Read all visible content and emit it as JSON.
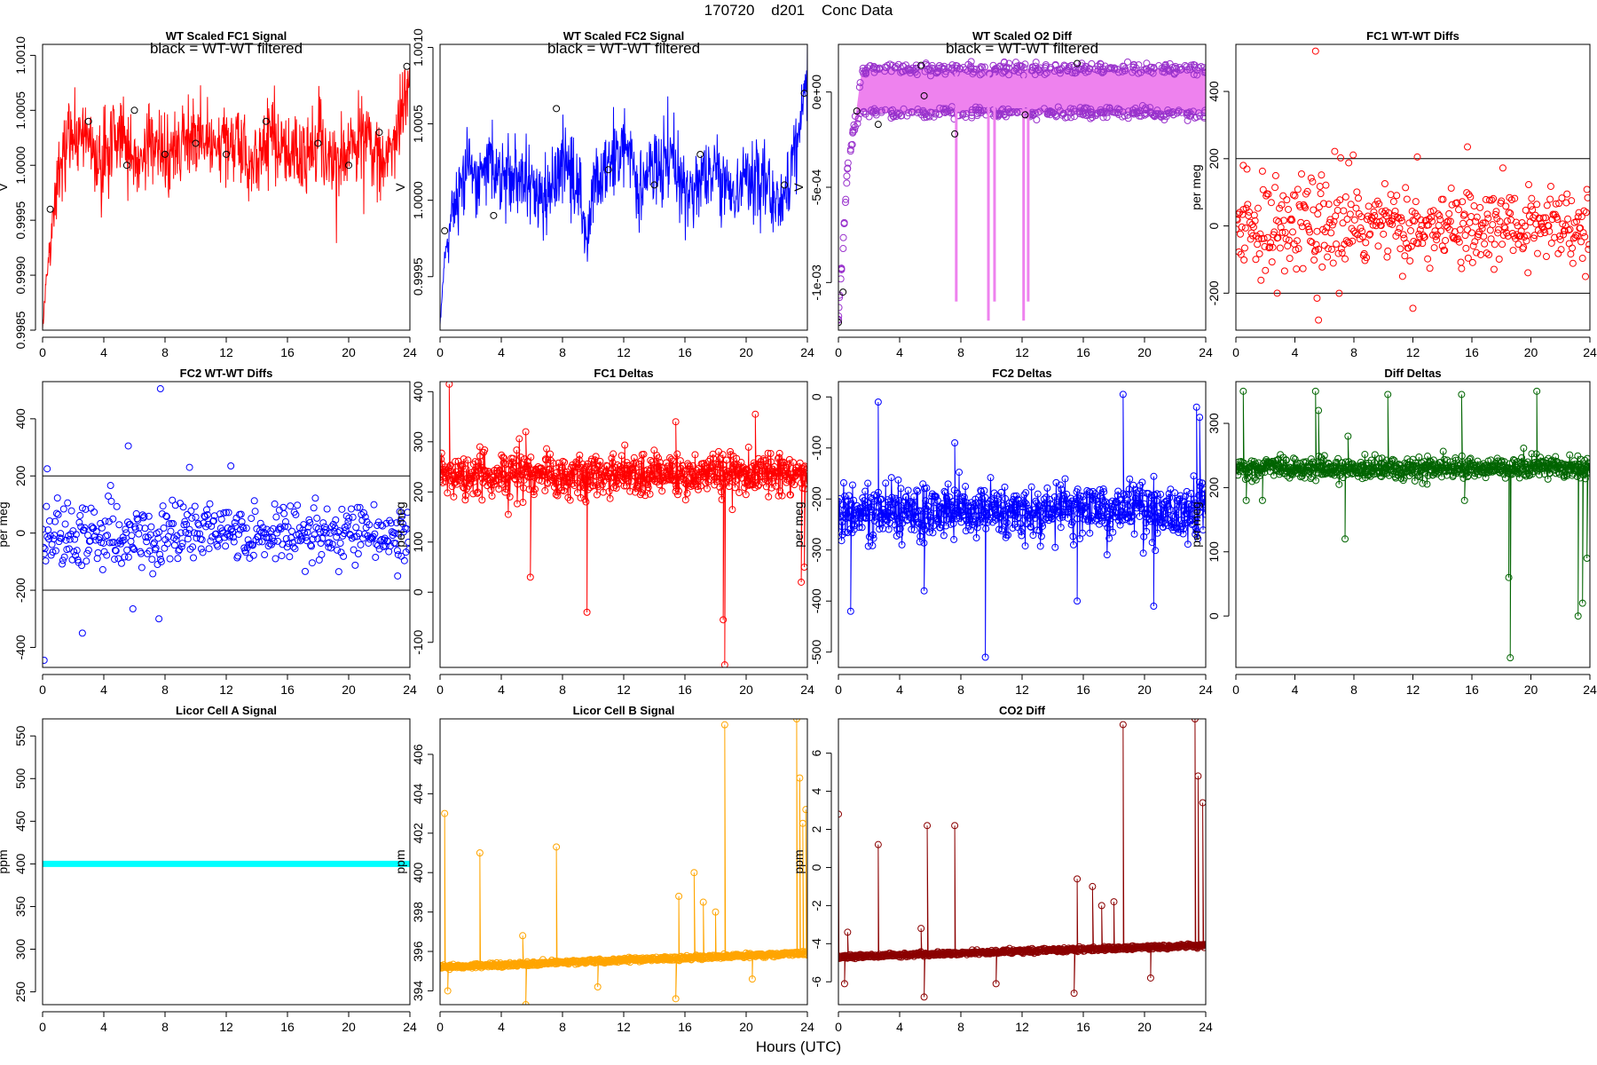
{
  "figure": {
    "title": "170720    d201    Conc Data",
    "xlabel": "Hours (UTC)"
  },
  "chart_data": [
    {
      "id": "p1",
      "type": "line",
      "title": "WT Scaled FC1 Signal",
      "note": "black = WT-WT filtered",
      "ylabel": "V",
      "xlim": [
        0,
        24
      ],
      "xticks": [
        0,
        4,
        8,
        12,
        16,
        20,
        24
      ],
      "ylim": [
        0.9985,
        1.0011
      ],
      "yticks": [
        0.9985,
        0.999,
        0.9995,
        1.0,
        1.0005,
        1.001
      ],
      "ytick_labels": [
        "0.9985",
        "0.9990",
        "0.9995",
        "1.0000",
        "1.0005",
        "1.0010"
      ],
      "series": [
        {
          "color": "#ff0000",
          "x": [
            0,
            0.2,
            0.5,
            0.8,
            1.2,
            1.6,
            2.0,
            2.4,
            2.8,
            3.2,
            3.6,
            4,
            5,
            6,
            7,
            8,
            9,
            10,
            11,
            12,
            13,
            14,
            15,
            16,
            17,
            18,
            19,
            20,
            21,
            22,
            22.8,
            23.3,
            23.7,
            24
          ],
          "y": [
            0.9985,
            0.9989,
            0.9993,
            0.9997,
            1.0,
            1.0002,
            1.0003,
            1.0002,
            1.0004,
            1.0001,
            1.0,
            1.0001,
            1.0003,
            1.0,
            1.0002,
            1.0001,
            1.0002,
            1.0003,
            1.0001,
            1.0002,
            1.0001,
            1.0,
            1.0002,
            1.0001,
            1.0001,
            1.0002,
            1.0,
            1.0001,
            1.0003,
            1.0001,
            1.0,
            1.0003,
            1.0006,
            1.001
          ]
        },
        {
          "color": "#000000",
          "x": [
            0.5,
            3,
            5.5,
            6,
            8,
            10,
            12,
            14.6,
            18,
            20,
            22,
            23.8
          ],
          "y": [
            0.9996,
            1.0004,
            1.0,
            1.0005,
            1.0001,
            1.0002,
            1.0001,
            1.0004,
            1.0002,
            1.0,
            1.0003,
            1.0009
          ]
        }
      ]
    },
    {
      "id": "p2",
      "type": "line",
      "title": "WT Scaled FC2 Signal",
      "note": "black = WT-WT filtered",
      "ylabel": "V",
      "xlim": [
        0,
        24
      ],
      "xticks": [
        0,
        4,
        8,
        12,
        16,
        20,
        24
      ],
      "ylim": [
        0.99915,
        1.00102
      ],
      "yticks": [
        0.9995,
        1.0,
        1.0005,
        1.001
      ],
      "ytick_labels": [
        "0.9995",
        "1.0000",
        "1.0005",
        "1.0010"
      ],
      "series": [
        {
          "color": "#0000ff",
          "x": [
            0,
            0.3,
            0.6,
            1,
            1.5,
            2,
            2.5,
            3,
            4,
            5,
            6,
            7,
            8,
            9,
            9.6,
            10,
            11,
            12,
            13,
            14,
            15,
            16,
            17,
            18,
            19,
            20,
            21,
            22,
            22.8,
            23.4,
            24
          ],
          "y": [
            0.9992,
            0.9996,
            0.99985,
            1.0,
            1.0001,
            1.0002,
            1.0001,
            1.0003,
            1.0001,
            1.0002,
            1.0001,
            1.0,
            1.0003,
            1.0001,
            0.9997,
            1.0001,
            1.0002,
            1.0004,
            1.0001,
            1.0002,
            1.0003,
            1.0,
            1.0001,
            1.0002,
            1.0,
            1.0001,
            1.0002,
            1.0,
            1.0001,
            1.0004,
            1.0008
          ]
        },
        {
          "color": "#000000",
          "x": [
            0.3,
            3.5,
            7.6,
            11,
            14,
            17,
            22.5,
            23.8
          ],
          "y": [
            0.9998,
            0.9999,
            1.0006,
            1.0002,
            1.0001,
            1.0003,
            1.0001,
            1.0007
          ]
        }
      ]
    },
    {
      "id": "p3",
      "type": "scatter",
      "title": "WT Scaled O2 Diff",
      "note": "black = WT-WT filtered",
      "ylabel": "V",
      "xlim": [
        0,
        24
      ],
      "xticks": [
        0,
        4,
        8,
        12,
        16,
        20,
        24
      ],
      "ylim": [
        -0.00125,
        0.00025
      ],
      "yticks": [
        -0.001,
        -0.0005,
        0
      ],
      "ytick_labels": [
        "-1e-03",
        "-5e-04",
        "0e+00"
      ],
      "series": [
        {
          "color": "#9932cc",
          "x": [
            0,
            0.3,
            0.6,
            1,
            1.5,
            2,
            3,
            4,
            5,
            6,
            7,
            8,
            9,
            10,
            11,
            12,
            13,
            14,
            15,
            16,
            17,
            18,
            19,
            20,
            21,
            22,
            23,
            24
          ],
          "y_upper": [
            -0.0012,
            -0.0008,
            -0.0004,
            -0.0002,
            0.0001,
            0.00012,
            0.00012,
            0.00012,
            0.00012,
            0.00012,
            0.00012,
            0.00012,
            0.00012,
            0.00012,
            0.00012,
            0.00012,
            0.00012,
            0.00012,
            0.00012,
            0.00012,
            0.00012,
            0.00012,
            0.00012,
            0.00012,
            0.00012,
            0.00012,
            0.00012,
            0.00012
          ],
          "y_lower": [
            -0.0012,
            -0.0008,
            -0.0004,
            -0.0002,
            -0.0001,
            -0.00011,
            -0.00011,
            -0.00011,
            -0.00011,
            -0.00011,
            -0.00011,
            -0.00011,
            -0.00011,
            -0.00011,
            -0.00011,
            -0.00011,
            -0.00011,
            -0.00011,
            -0.00011,
            -0.00011,
            -0.00011,
            -0.00011,
            -0.00011,
            -0.00011,
            -0.00011,
            -0.00011,
            -0.00011,
            -0.00011
          ]
        },
        {
          "color": "#000000",
          "x": [
            0,
            0.3,
            1.2,
            2.6,
            5.4,
            5.6,
            7.6,
            12.2,
            15.6
          ],
          "y": [
            -0.00121,
            -0.00105,
            -0.0001,
            -0.00017,
            0.00014,
            -2e-05,
            -0.00022,
            -0.00012,
            0.00015
          ]
        }
      ]
    },
    {
      "id": "p4",
      "type": "scatter",
      "title": "FC1 WT-WT Diffs",
      "ylabel": "per meg",
      "xlim": [
        0,
        24
      ],
      "xticks": [
        0,
        4,
        8,
        12,
        16,
        20,
        24
      ],
      "ylim": [
        -310,
        540
      ],
      "yticks": [
        -200,
        0,
        200,
        400
      ],
      "ytick_labels": [
        "-200",
        "0",
        "200",
        "400"
      ],
      "hlines": [
        200,
        -200
      ],
      "series": [
        {
          "color": "#ff0000",
          "sigma": 65,
          "n": 480,
          "seed": 11,
          "outliers": [
            [
              5.4,
              520
            ],
            [
              5.5,
              -215
            ],
            [
              5.6,
              -280
            ],
            [
              12.3,
              205
            ],
            [
              15.7,
              235
            ],
            [
              12.0,
              -245
            ],
            [
              0.5,
              180
            ],
            [
              2.8,
              -200
            ]
          ]
        }
      ]
    },
    {
      "id": "p5",
      "type": "scatter",
      "title": "FC2 WT-WT Diffs",
      "ylabel": "per meg",
      "xlim": [
        0,
        24
      ],
      "xticks": [
        0,
        4,
        8,
        12,
        16,
        20,
        24
      ],
      "ylim": [
        -470,
        530
      ],
      "yticks": [
        -400,
        -200,
        0,
        200,
        400
      ],
      "ytick_labels": [
        "-400",
        "-200",
        "0",
        "200",
        "400"
      ],
      "hlines": [
        200,
        -200
      ],
      "series": [
        {
          "color": "#0000ff",
          "sigma": 60,
          "n": 470,
          "seed": 23,
          "outliers": [
            [
              7.7,
              505
            ],
            [
              5.6,
              305
            ],
            [
              0.1,
              -445
            ],
            [
              2.6,
              -350
            ],
            [
              7.6,
              -300
            ],
            [
              5.9,
              -265
            ],
            [
              0.3,
              225
            ],
            [
              9.6,
              230
            ],
            [
              12.3,
              235
            ],
            [
              23.2,
              -150
            ]
          ]
        }
      ]
    },
    {
      "id": "p6",
      "type": "line",
      "title": "FC1 Deltas",
      "ylabel": "per meg",
      "xlim": [
        0,
        24
      ],
      "xticks": [
        0,
        4,
        8,
        12,
        16,
        20,
        24
      ],
      "ylim": [
        -150,
        420
      ],
      "yticks": [
        -100,
        0,
        100,
        200,
        300,
        400
      ],
      "ytick_labels": [
        "-100",
        "0",
        "100",
        "200",
        "300",
        "400"
      ],
      "series": [
        {
          "color": "#ff0000",
          "base": 235,
          "sigma": 22,
          "n": 700,
          "seed": 5,
          "spikes": [
            [
              0.6,
              415
            ],
            [
              5.9,
              30
            ],
            [
              9.6,
              -40
            ],
            [
              18.6,
              -145
            ],
            [
              18.5,
              -55
            ],
            [
              15.4,
              340
            ],
            [
              20.6,
              355
            ],
            [
              5.6,
              320
            ],
            [
              2.6,
              290
            ],
            [
              23.6,
              20
            ],
            [
              23.8,
              50
            ]
          ]
        }
      ]
    },
    {
      "id": "p7",
      "type": "line",
      "title": "FC2 Deltas",
      "ylabel": "per meg",
      "xlim": [
        0,
        24
      ],
      "xticks": [
        0,
        4,
        8,
        12,
        16,
        20,
        24
      ],
      "ylim": [
        -530,
        30
      ],
      "yticks": [
        -500,
        -400,
        -300,
        -200,
        -100,
        0
      ],
      "ytick_labels": [
        "-500",
        "-400",
        "-300",
        "-200",
        "-100",
        "0"
      ],
      "series": [
        {
          "color": "#0000ff",
          "base": -225,
          "sigma": 25,
          "n": 700,
          "seed": 7,
          "spikes": [
            [
              9.6,
              -510
            ],
            [
              18.6,
              5
            ],
            [
              0.8,
              -420
            ],
            [
              20.6,
              -410
            ],
            [
              15.6,
              -400
            ],
            [
              5.6,
              -380
            ],
            [
              23.4,
              -20
            ],
            [
              23.6,
              -40
            ],
            [
              2.6,
              -10
            ],
            [
              7.6,
              -90
            ]
          ]
        }
      ]
    },
    {
      "id": "p8",
      "type": "line",
      "title": "Diff Deltas",
      "ylabel": "per meg",
      "xlim": [
        0,
        24
      ],
      "xticks": [
        0,
        4,
        8,
        12,
        16,
        20,
        24
      ],
      "ylim": [
        -80,
        365
      ],
      "yticks": [
        0,
        100,
        200,
        300
      ],
      "ytick_labels": [
        "0",
        "100",
        "200",
        "300"
      ],
      "series": [
        {
          "color": "#006400",
          "base": 230,
          "sigma": 8,
          "n": 700,
          "seed": 9,
          "spikes": [
            [
              0.5,
              350
            ],
            [
              0.7,
              180
            ],
            [
              5.4,
              350
            ],
            [
              5.6,
              320
            ],
            [
              10.3,
              345
            ],
            [
              15.3,
              345
            ],
            [
              15.5,
              180
            ],
            [
              20.4,
              350
            ],
            [
              18.6,
              -65
            ],
            [
              18.5,
              60
            ],
            [
              23.2,
              0
            ],
            [
              23.5,
              20
            ],
            [
              23.8,
              90
            ],
            [
              7.6,
              280
            ],
            [
              1.8,
              180
            ],
            [
              7.4,
              120
            ]
          ]
        }
      ]
    },
    {
      "id": "p9",
      "type": "line",
      "title": "Licor Cell A Signal",
      "ylabel": "ppm",
      "xlim": [
        0,
        24
      ],
      "xticks": [
        0,
        4,
        8,
        12,
        16,
        20,
        24
      ],
      "ylim": [
        235,
        570
      ],
      "yticks": [
        250,
        300,
        350,
        400,
        450,
        500,
        550
      ],
      "ytick_labels": [
        "250",
        "300",
        "350",
        "400",
        "450",
        "500",
        "550"
      ],
      "series": [
        {
          "color": "#00ffff",
          "x": [
            0,
            24
          ],
          "y": [
            400,
            400
          ]
        }
      ]
    },
    {
      "id": "p10",
      "type": "line",
      "title": "Licor Cell B Signal",
      "ylabel": "ppm",
      "xlim": [
        0,
        24
      ],
      "xticks": [
        0,
        4,
        8,
        12,
        16,
        20,
        24
      ],
      "ylim": [
        393.3,
        407.8
      ],
      "yticks": [
        394,
        396,
        398,
        400,
        402,
        404,
        406
      ],
      "ytick_labels": [
        "394",
        "396",
        "398",
        "400",
        "402",
        "404",
        "406"
      ],
      "series": [
        {
          "color": "#ffa500",
          "base_start": 395.2,
          "base_end": 395.9,
          "sigma": 0.05,
          "n": 700,
          "seed": 3,
          "spikes": [
            [
              0.3,
              403
            ],
            [
              0.5,
              394
            ],
            [
              2.6,
              401
            ],
            [
              5.4,
              396.8
            ],
            [
              5.6,
              393.3
            ],
            [
              7.6,
              401.3
            ],
            [
              10.3,
              394.2
            ],
            [
              15.4,
              393.6
            ],
            [
              15.6,
              398.8
            ],
            [
              18.6,
              407.5
            ],
            [
              20.4,
              394.6
            ],
            [
              23.3,
              407.8
            ],
            [
              23.5,
              404.8
            ],
            [
              23.7,
              402.5
            ],
            [
              23.9,
              403.2
            ],
            [
              16.6,
              400
            ],
            [
              17.2,
              398.5
            ],
            [
              18,
              398
            ]
          ]
        }
      ]
    },
    {
      "id": "p11",
      "type": "line",
      "title": "CO2 Diff",
      "ylabel": "ppm",
      "xlim": [
        0,
        24
      ],
      "xticks": [
        0,
        4,
        8,
        12,
        16,
        20,
        24
      ],
      "ylim": [
        -7.2,
        7.8
      ],
      "yticks": [
        -6,
        -4,
        -2,
        0,
        2,
        4,
        6
      ],
      "ytick_labels": [
        "-6",
        "-4",
        "-2",
        "0",
        "2",
        "4",
        "6"
      ],
      "series": [
        {
          "color": "#8b0000",
          "base_start": -4.7,
          "base_end": -4.1,
          "sigma": 0.05,
          "n": 700,
          "seed": 4,
          "spikes": [
            [
              0.0,
              2.8
            ],
            [
              0.4,
              -6.1
            ],
            [
              0.6,
              -3.4
            ],
            [
              2.6,
              1.2
            ],
            [
              5.4,
              -3.2
            ],
            [
              5.6,
              -6.8
            ],
            [
              5.8,
              2.2
            ],
            [
              7.6,
              2.2
            ],
            [
              10.3,
              -6.1
            ],
            [
              15.4,
              -6.6
            ],
            [
              15.6,
              -0.6
            ],
            [
              18.6,
              7.5
            ],
            [
              20.4,
              -5.8
            ],
            [
              23.3,
              7.8
            ],
            [
              23.5,
              4.8
            ],
            [
              23.8,
              3.4
            ],
            [
              16.6,
              -1
            ],
            [
              17.2,
              -2
            ],
            [
              18,
              -1.8
            ]
          ]
        }
      ]
    }
  ]
}
